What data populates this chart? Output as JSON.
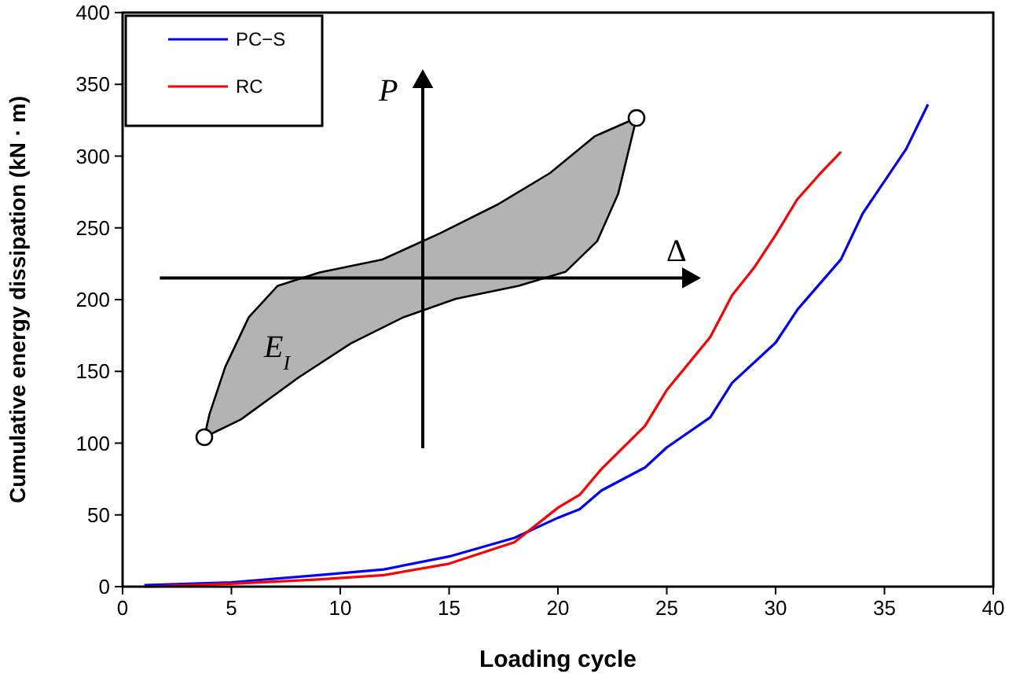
{
  "chart_data": {
    "type": "line",
    "xlabel": "Loading cycle",
    "ylabel": "Cumulative energy dissipation (kN · m)",
    "xlim": [
      0,
      40
    ],
    "xticks": [
      0,
      5,
      10,
      15,
      20,
      25,
      30,
      35,
      40
    ],
    "ylim": [
      0,
      400
    ],
    "yticks": [
      0,
      50,
      100,
      150,
      200,
      250,
      300,
      350,
      400
    ],
    "grid": false,
    "legend": "top left",
    "marker": "none",
    "line_style": "solid",
    "annotations": [
      "P",
      "Δ",
      "E$_{I}$"
    ],
    "series": [
      {
        "name": "PC−S",
        "color": "#0000ff",
        "x": [
          1,
          5,
          9,
          12,
          15,
          18,
          20,
          21,
          22,
          24,
          25,
          27,
          28,
          30,
          31,
          33,
          34,
          36,
          37
        ],
        "values": [
          1,
          3,
          8,
          12,
          21,
          34,
          48,
          54,
          67,
          83,
          97,
          118,
          142,
          170,
          193,
          228,
          260,
          305,
          336
        ]
      },
      {
        "name": "RC",
        "color": "#ff0000",
        "x": [
          1,
          5,
          9,
          12,
          15,
          18,
          20,
          21,
          22,
          24,
          25,
          27,
          28,
          29,
          30,
          31,
          32,
          33
        ],
        "values": [
          0,
          2,
          5,
          8,
          16,
          31,
          55,
          64,
          82,
          112,
          137,
          174,
          203,
          222,
          245,
          270,
          287,
          303
        ]
      }
    ]
  }
}
